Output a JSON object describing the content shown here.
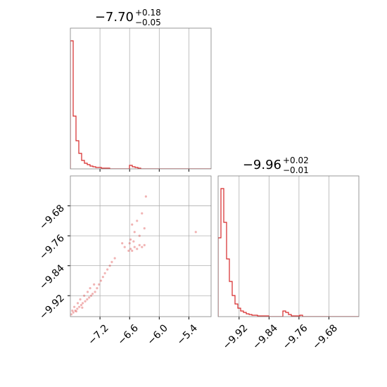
{
  "chart_data": [
    {
      "type": "histogram",
      "title": "−7.70",
      "title_upper": "+0.18",
      "title_lower": "−0.05",
      "color": "#d62728",
      "grid": true,
      "bins": [
        -7.8,
        -7.743,
        -7.686,
        -7.629,
        -7.572,
        -7.515,
        -7.458,
        -7.401,
        -7.344,
        -7.287,
        -7.23,
        -7.173,
        -7.116,
        -7.059,
        -7.002,
        -6.945,
        -6.888,
        -6.831,
        -6.774,
        -6.717,
        -6.66,
        -6.603,
        -6.546,
        -6.489,
        -6.432,
        -6.375,
        -6.318,
        -6.261,
        -6.204,
        -6.147,
        -6.09,
        -6.033,
        -5.976,
        -5.919,
        -5.862,
        -5.805,
        -5.748,
        -5.691,
        -5.634,
        -5.577,
        -5.52,
        -5.463,
        -5.406,
        -5.349,
        -5.292,
        -5.235,
        -5.178,
        -5.121,
        -5.064,
        -5.007,
        -4.95
      ],
      "values": [
        182,
        75,
        40,
        22,
        12,
        8,
        6,
        4,
        3,
        2,
        2,
        1,
        1,
        1,
        0,
        0,
        0,
        0,
        0,
        0,
        0,
        5,
        3,
        2,
        1,
        0,
        0,
        0,
        0,
        0,
        0,
        0,
        0,
        0,
        0,
        0,
        0,
        0,
        0,
        0,
        0,
        0,
        0,
        0,
        0,
        0,
        0,
        0,
        0,
        0
      ],
      "xlim": [
        -7.8,
        -4.95
      ],
      "xticks": [
        -7.2,
        -6.6,
        -6.0,
        -5.4
      ],
      "ylim": [
        0,
        200
      ]
    },
    {
      "type": "scatter",
      "color": "#d62728",
      "grid": true,
      "x": [
        -7.78,
        -7.74,
        -7.7,
        -7.66,
        -7.62,
        -7.58,
        -7.55,
        -7.5,
        -7.46,
        -7.42,
        -7.38,
        -7.35,
        -7.3,
        -7.26,
        -7.22,
        -7.18,
        -7.14,
        -7.1,
        -7.05,
        -7.0,
        -6.96,
        -6.9,
        -7.72,
        -7.65,
        -7.6,
        -7.52,
        -7.45,
        -7.4,
        -7.32,
        -7.76,
        -7.68,
        -7.56,
        -6.7,
        -6.62,
        -6.58,
        -6.55,
        -6.5,
        -6.45,
        -6.4,
        -6.35,
        -6.3,
        -6.6,
        -6.52,
        -6.75,
        -6.58,
        -6.55,
        -6.5,
        -6.45,
        -6.35,
        -6.3,
        -6.27,
        -6.4,
        -5.26
      ],
      "y": [
        -9.97,
        -9.965,
        -9.96,
        -9.955,
        -9.95,
        -9.945,
        -9.94,
        -9.935,
        -9.93,
        -9.925,
        -9.92,
        -9.915,
        -9.91,
        -9.9,
        -9.89,
        -9.88,
        -9.87,
        -9.86,
        -9.85,
        -9.84,
        -9.83,
        -9.82,
        -9.95,
        -9.94,
        -9.93,
        -9.92,
        -9.91,
        -9.9,
        -9.89,
        -9.96,
        -9.962,
        -9.952,
        -9.79,
        -9.8,
        -9.795,
        -9.8,
        -9.79,
        -9.795,
        -9.785,
        -9.79,
        -9.785,
        -9.78,
        -9.775,
        -9.78,
        -9.77,
        -9.73,
        -9.75,
        -9.72,
        -9.7,
        -9.74,
        -9.655,
        -9.76,
        -9.75
      ],
      "xlim": [
        -7.8,
        -4.95
      ],
      "xticks": [
        {
          "value": -7.2,
          "label": "−7.2"
        },
        {
          "value": -6.6,
          "label": "−6.6"
        },
        {
          "value": -6.0,
          "label": "−6.0"
        },
        {
          "value": -5.4,
          "label": "−5.4"
        }
      ],
      "ylim": [
        -9.976,
        -9.6
      ],
      "yticks": [
        {
          "value": -9.68,
          "label": "−9.68"
        },
        {
          "value": -9.76,
          "label": "−9.76"
        },
        {
          "value": -9.84,
          "label": "−9.84"
        },
        {
          "value": -9.92,
          "label": "−9.92"
        }
      ]
    },
    {
      "type": "histogram",
      "title": "−9.96",
      "title_upper": "+0.02",
      "title_lower": "−0.01",
      "color": "#d62728",
      "grid": true,
      "bins": [
        -9.976,
        -9.96848,
        -9.96096,
        -9.95344,
        -9.94592,
        -9.9384,
        -9.93088,
        -9.92336,
        -9.91584,
        -9.90832,
        -9.9008,
        -9.89328,
        -9.88576,
        -9.87824,
        -9.87072,
        -9.8632,
        -9.85568,
        -9.84816,
        -9.84064,
        -9.83312,
        -9.8256,
        -9.81808,
        -9.81056,
        -9.80304,
        -9.79552,
        -9.788,
        -9.78048,
        -9.77296,
        -9.76544,
        -9.75792,
        -9.7504,
        -9.74288,
        -9.73536,
        -9.72784,
        -9.72032,
        -9.7128,
        -9.70528,
        -9.69776,
        -9.69024,
        -9.68272,
        -9.6752,
        -9.66768,
        -9.66016,
        -9.65264,
        -9.64512,
        -9.6376,
        -9.63008,
        -9.62256,
        -9.61504,
        -9.60752,
        -9.6
      ],
      "values": [
        112,
        182,
        134,
        82,
        50,
        30,
        18,
        12,
        8,
        6,
        4,
        3,
        2,
        2,
        1,
        1,
        1,
        1,
        0,
        0,
        0,
        0,
        0,
        8,
        6,
        3,
        1,
        1,
        1,
        2,
        0,
        0,
        0,
        0,
        0,
        0,
        0,
        0,
        0,
        0,
        0,
        0,
        0,
        0,
        0,
        0,
        0,
        0,
        0,
        0
      ],
      "xlim": [
        -9.976,
        -9.6
      ],
      "xticks": [
        {
          "value": -9.92,
          "label": "−9.92"
        },
        {
          "value": -9.84,
          "label": "−9.84"
        },
        {
          "value": -9.76,
          "label": "−9.76"
        },
        {
          "value": -9.68,
          "label": "−9.68"
        }
      ],
      "ylim": [
        0,
        200
      ]
    }
  ]
}
